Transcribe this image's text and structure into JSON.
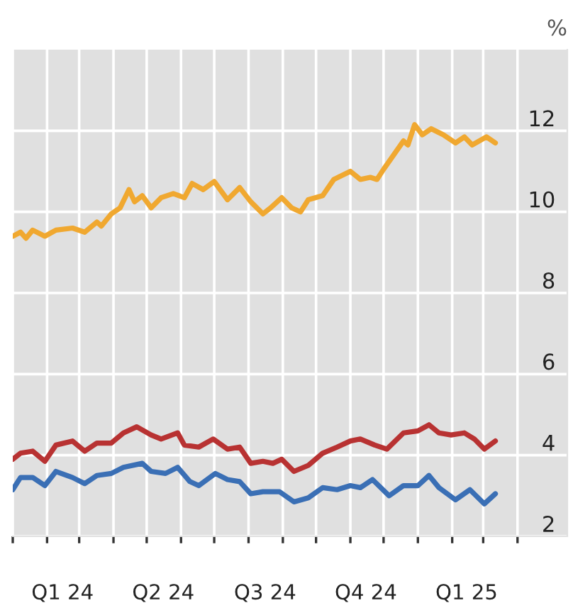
{
  "chart_data": {
    "type": "line",
    "ylabel": "%",
    "xlim": [
      "2024-01-01",
      "2025-05-16"
    ],
    "ylim": [
      2,
      14
    ],
    "yticks": [
      2,
      4,
      6,
      8,
      10,
      12
    ],
    "xticks": [
      {
        "value": "2024-01-01",
        "label": null
      },
      {
        "value": "2024-02-01",
        "label": null
      },
      {
        "value": "2024-03-01",
        "label": null
      },
      {
        "value": "2024-04-01",
        "label": null
      },
      {
        "value": "2024-05-01",
        "label": null
      },
      {
        "value": "2024-06-01",
        "label": null
      },
      {
        "value": "2024-07-01",
        "label": null
      },
      {
        "value": "2024-08-01",
        "label": null
      },
      {
        "value": "2024-09-01",
        "label": null
      },
      {
        "value": "2024-10-01",
        "label": null
      },
      {
        "value": "2024-11-01",
        "label": null
      },
      {
        "value": "2024-12-01",
        "label": null
      },
      {
        "value": "2025-01-01",
        "label": null
      },
      {
        "value": "2025-02-01",
        "label": null
      },
      {
        "value": "2025-03-01",
        "label": null
      },
      {
        "value": "2025-04-01",
        "label": null
      },
      {
        "value": "2024-02-15",
        "label": "Q1 24"
      },
      {
        "value": "2024-05-16",
        "label": "Q2 24"
      },
      {
        "value": "2024-08-16",
        "label": "Q3 24"
      },
      {
        "value": "2024-11-15",
        "label": "Q4 24"
      },
      {
        "value": "2025-02-14",
        "label": "Q1 25"
      }
    ],
    "grid": true,
    "line_style": "solid",
    "marker": "none",
    "series": [
      {
        "color": "#f0a830",
        "x": [
          "2024-01-01",
          "2024-01-08",
          "2024-01-13",
          "2024-01-19",
          "2024-01-30",
          "2024-02-09",
          "2024-02-24",
          "2024-03-06",
          "2024-03-17",
          "2024-03-21",
          "2024-03-30",
          "2024-04-07",
          "2024-04-15",
          "2024-04-20",
          "2024-04-27",
          "2024-05-05",
          "2024-05-14",
          "2024-05-25",
          "2024-06-04",
          "2024-06-11",
          "2024-06-21",
          "2024-07-01",
          "2024-07-13",
          "2024-07-24",
          "2024-08-03",
          "2024-08-14",
          "2024-08-21",
          "2024-08-31",
          "2024-09-09",
          "2024-09-17",
          "2024-09-24",
          "2024-10-07",
          "2024-10-17",
          "2024-11-01",
          "2024-11-10",
          "2024-11-19",
          "2024-11-25",
          "2024-12-01",
          "2024-12-10",
          "2024-12-19",
          "2024-12-23",
          "2024-12-29",
          "2025-01-05",
          "2025-01-13",
          "2025-01-24",
          "2025-02-04",
          "2025-02-12",
          "2025-02-19",
          "2025-03-04",
          "2025-03-12"
        ],
        "values": [
          9.4,
          9.5,
          9.35,
          9.55,
          9.4,
          9.55,
          9.6,
          9.5,
          9.75,
          9.65,
          9.95,
          10.1,
          10.55,
          10.25,
          10.4,
          10.1,
          10.35,
          10.45,
          10.35,
          10.7,
          10.55,
          10.75,
          10.3,
          10.6,
          10.25,
          9.95,
          10.1,
          10.35,
          10.1,
          10.0,
          10.3,
          10.4,
          10.8,
          11.0,
          10.8,
          10.85,
          10.8,
          11.05,
          11.4,
          11.75,
          11.65,
          12.15,
          11.9,
          12.05,
          11.9,
          11.7,
          11.85,
          11.65,
          11.85,
          11.7
        ]
      },
      {
        "color": "#b83232",
        "x": [
          "2024-01-01",
          "2024-01-08",
          "2024-01-19",
          "2024-01-30",
          "2024-02-09",
          "2024-02-24",
          "2024-03-06",
          "2024-03-17",
          "2024-03-30",
          "2024-04-10",
          "2024-04-22",
          "2024-05-05",
          "2024-05-14",
          "2024-05-29",
          "2024-06-04",
          "2024-06-17",
          "2024-06-30",
          "2024-07-13",
          "2024-07-24",
          "2024-08-03",
          "2024-08-14",
          "2024-08-23",
          "2024-08-31",
          "2024-09-11",
          "2024-09-24",
          "2024-10-07",
          "2024-10-20",
          "2024-11-01",
          "2024-11-10",
          "2024-11-23",
          "2024-12-04",
          "2024-12-19",
          "2025-01-01",
          "2025-01-11",
          "2025-01-20",
          "2025-01-31",
          "2025-02-12",
          "2025-02-21",
          "2025-03-02",
          "2025-03-12"
        ],
        "values": [
          3.9,
          4.05,
          4.1,
          3.85,
          4.25,
          4.35,
          4.1,
          4.3,
          4.3,
          4.55,
          4.7,
          4.5,
          4.4,
          4.55,
          4.25,
          4.2,
          4.4,
          4.15,
          4.2,
          3.8,
          3.85,
          3.8,
          3.9,
          3.6,
          3.75,
          4.05,
          4.2,
          4.35,
          4.4,
          4.25,
          4.15,
          4.55,
          4.6,
          4.75,
          4.55,
          4.5,
          4.55,
          4.4,
          4.15,
          4.35
        ]
      },
      {
        "color": "#3a6fb5",
        "x": [
          "2024-01-01",
          "2024-01-08",
          "2024-01-19",
          "2024-01-30",
          "2024-02-09",
          "2024-02-24",
          "2024-03-06",
          "2024-03-17",
          "2024-03-30",
          "2024-04-10",
          "2024-04-27",
          "2024-05-05",
          "2024-05-18",
          "2024-05-29",
          "2024-06-09",
          "2024-06-17",
          "2024-07-02",
          "2024-07-13",
          "2024-07-24",
          "2024-08-03",
          "2024-08-14",
          "2024-08-29",
          "2024-09-11",
          "2024-09-24",
          "2024-10-07",
          "2024-10-20",
          "2024-11-01",
          "2024-11-10",
          "2024-11-21",
          "2024-12-06",
          "2024-12-19",
          "2025-01-01",
          "2025-01-11",
          "2025-01-20",
          "2025-02-04",
          "2025-02-17",
          "2025-03-02",
          "2025-03-12"
        ],
        "values": [
          3.15,
          3.45,
          3.45,
          3.25,
          3.6,
          3.45,
          3.3,
          3.5,
          3.55,
          3.7,
          3.8,
          3.6,
          3.55,
          3.7,
          3.35,
          3.25,
          3.55,
          3.4,
          3.35,
          3.05,
          3.1,
          3.1,
          2.85,
          2.95,
          3.2,
          3.15,
          3.25,
          3.2,
          3.4,
          3.0,
          3.25,
          3.25,
          3.5,
          3.2,
          2.9,
          3.15,
          2.8,
          3.05
        ]
      }
    ]
  }
}
